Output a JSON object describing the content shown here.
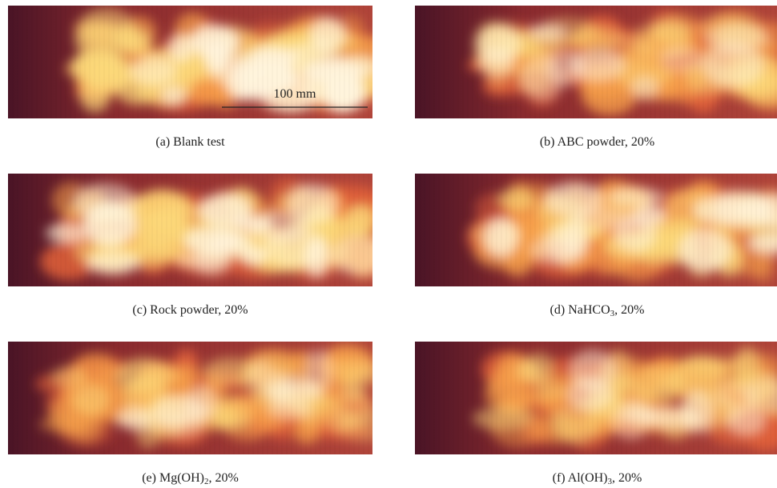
{
  "panels": [
    {
      "caption": {
        "main": "(a) Blank test"
      },
      "scale_bar": "100 mm"
    },
    {
      "caption": {
        "main": "(b) ABC powder, 20%"
      }
    },
    {
      "caption": {
        "main": "(c) Rock powder, 20%"
      }
    },
    {
      "caption": {
        "main": "(d) NaHCO",
        "sub": "3",
        "tail": ", 20%"
      }
    },
    {
      "caption": {
        "main": "(e) Mg(OH)",
        "sub": "2",
        "tail": ", 20%"
      }
    },
    {
      "caption": {
        "main": "(f) Al(OH)",
        "sub": "3",
        "tail": ", 20%"
      }
    }
  ]
}
